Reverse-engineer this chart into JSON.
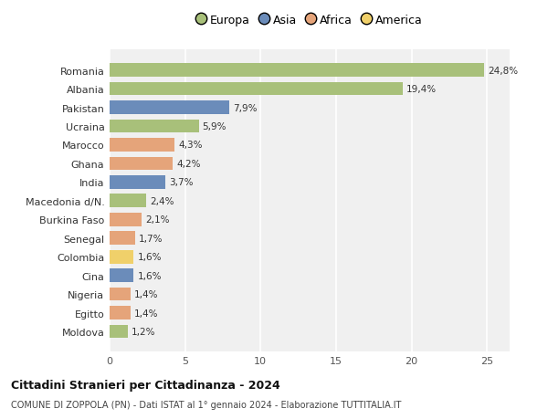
{
  "countries": [
    "Romania",
    "Albania",
    "Pakistan",
    "Ucraina",
    "Marocco",
    "Ghana",
    "India",
    "Macedonia d/N.",
    "Burkina Faso",
    "Senegal",
    "Colombia",
    "Cina",
    "Nigeria",
    "Egitto",
    "Moldova"
  ],
  "values": [
    24.8,
    19.4,
    7.9,
    5.9,
    4.3,
    4.2,
    3.7,
    2.4,
    2.1,
    1.7,
    1.6,
    1.6,
    1.4,
    1.4,
    1.2
  ],
  "labels": [
    "24,8%",
    "19,4%",
    "7,9%",
    "5,9%",
    "4,3%",
    "4,2%",
    "3,7%",
    "2,4%",
    "2,1%",
    "1,7%",
    "1,6%",
    "1,6%",
    "1,4%",
    "1,4%",
    "1,2%"
  ],
  "categories": [
    "Europa",
    "Europa",
    "Asia",
    "Europa",
    "Africa",
    "Africa",
    "Asia",
    "Europa",
    "Africa",
    "Africa",
    "America",
    "Asia",
    "Africa",
    "Africa",
    "Europa"
  ],
  "category_colors": {
    "Europa": "#a8c07a",
    "Asia": "#6b8cba",
    "Africa": "#e5a47a",
    "America": "#f0d06a"
  },
  "legend_categories": [
    "Europa",
    "Asia",
    "Africa",
    "America"
  ],
  "legend_colors": [
    "#a8c07a",
    "#6b8cba",
    "#e5a47a",
    "#f0d06a"
  ],
  "title": "Cittadini Stranieri per Cittadinanza - 2024",
  "subtitle": "COMUNE DI ZOPPOLA (PN) - Dati ISTAT al 1° gennaio 2024 - Elaborazione TUTTITALIA.IT",
  "xlim": [
    0,
    26.5
  ],
  "xticks": [
    0,
    5,
    10,
    15,
    20,
    25
  ],
  "background_color": "#ffffff",
  "plot_bg_color": "#f0f0f0",
  "grid_color": "#ffffff",
  "bar_height": 0.72
}
